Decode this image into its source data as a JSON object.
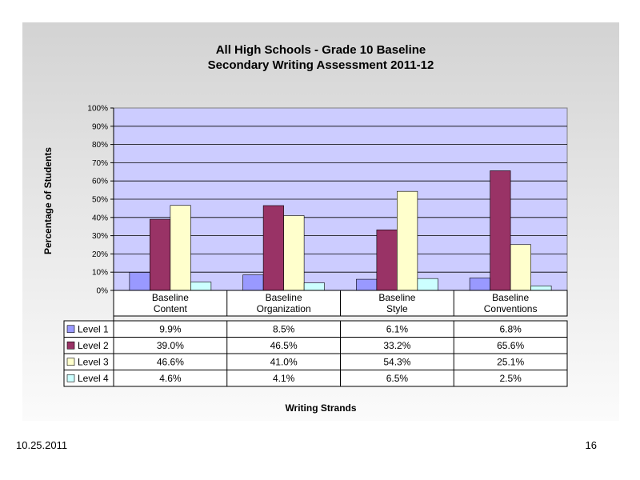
{
  "footer": {
    "date": "10.25.2011",
    "page": "16"
  },
  "chart_data": {
    "type": "bar",
    "title": [
      "All High Schools - Grade 10 Baseline",
      "Secondary Writing Assessment 2011-12"
    ],
    "xlabel": "Writing Strands",
    "ylabel": "Percentage of Students",
    "ylim": [
      0,
      100
    ],
    "yticks": [
      "0%",
      "10%",
      "20%",
      "30%",
      "40%",
      "50%",
      "60%",
      "70%",
      "80%",
      "90%",
      "100%"
    ],
    "categories": [
      [
        "Baseline",
        "Content"
      ],
      [
        "Baseline",
        "Organization"
      ],
      [
        "Baseline",
        "Style"
      ],
      [
        "Baseline",
        "Conventions"
      ]
    ],
    "series": [
      {
        "name": "Level 1",
        "color": "#9999ff",
        "values": [
          9.9,
          8.5,
          6.1,
          6.8
        ],
        "labels": [
          "9.9%",
          "8.5%",
          "6.1%",
          "6.8%"
        ]
      },
      {
        "name": "Level 2",
        "color": "#993366",
        "values": [
          39.0,
          46.5,
          33.2,
          65.6
        ],
        "labels": [
          "39.0%",
          "46.5%",
          "33.2%",
          "65.6%"
        ]
      },
      {
        "name": "Level 3",
        "color": "#ffffcc",
        "values": [
          46.6,
          41.0,
          54.3,
          25.1
        ],
        "labels": [
          "46.6%",
          "41.0%",
          "54.3%",
          "25.1%"
        ]
      },
      {
        "name": "Level 4",
        "color": "#ccffff",
        "values": [
          4.6,
          4.1,
          6.5,
          2.5
        ],
        "labels": [
          "4.6%",
          "4.1%",
          "6.5%",
          "2.5%"
        ]
      }
    ],
    "plot_background": "#ccccff",
    "grid": true,
    "data_table": true
  }
}
